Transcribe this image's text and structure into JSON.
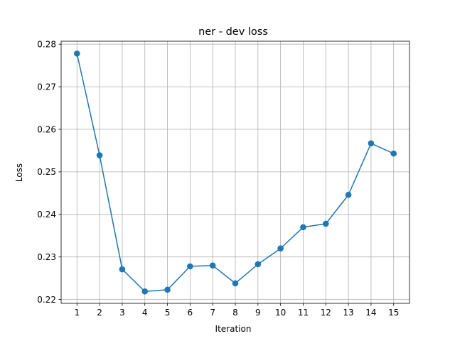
{
  "chart_data": {
    "type": "line",
    "title": "ner - dev loss",
    "xlabel": "Iteration",
    "ylabel": "Loss",
    "x": [
      1,
      2,
      3,
      4,
      5,
      6,
      7,
      8,
      9,
      10,
      11,
      12,
      13,
      14,
      15
    ],
    "x_ticks": [
      "1",
      "2",
      "3",
      "4",
      "5",
      "6",
      "7",
      "8",
      "9",
      "10",
      "11",
      "12",
      "13",
      "14",
      "15"
    ],
    "y": [
      0.2778,
      0.2539,
      0.2271,
      0.2219,
      0.2223,
      0.2278,
      0.228,
      0.2238,
      0.2283,
      0.232,
      0.237,
      0.2378,
      0.2446,
      0.2567,
      0.2543
    ],
    "y_ticks": [
      "0.22",
      "0.23",
      "0.24",
      "0.25",
      "0.26",
      "0.27",
      "0.28"
    ],
    "ylim": [
      0.2191,
      0.2807
    ],
    "xlim": [
      0.3,
      15.7
    ],
    "grid": true,
    "marker": "circle",
    "color": "#1f77b4"
  }
}
